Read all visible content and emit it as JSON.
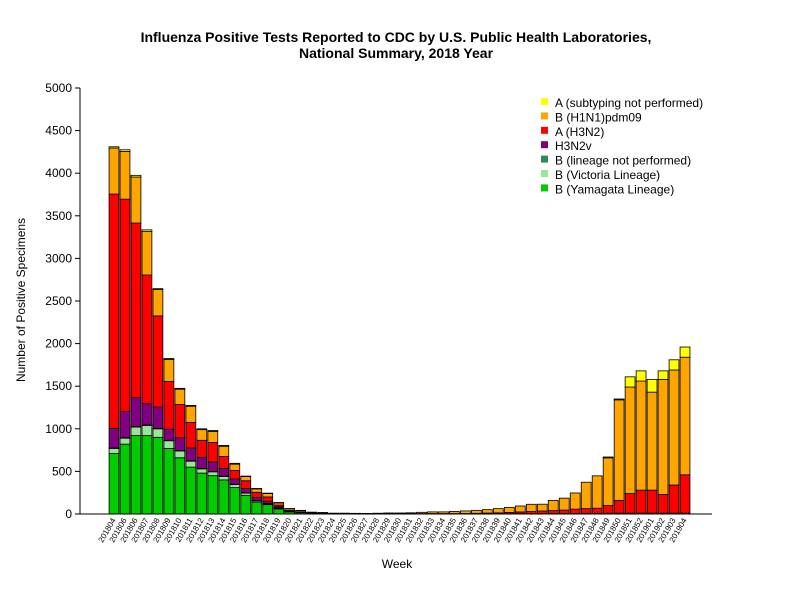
{
  "chart_data": {
    "type": "bar",
    "stacked": true,
    "title_line1": "Influenza Positive Tests Reported to CDC by U.S. Public Health Laboratories,",
    "title_line2": "National Summary, 2018 Year",
    "xlabel": "Week",
    "ylabel": "Number of Positive Specimens",
    "ylim": [
      0,
      5000
    ],
    "yticks": [
      0,
      500,
      1000,
      1500,
      2000,
      2500,
      3000,
      3500,
      4000,
      4500,
      5000
    ],
    "legend_position": "top-right",
    "categories": [
      "201804",
      "201806",
      "201806",
      "201807",
      "201808",
      "201809",
      "201810",
      "201811",
      "201812",
      "201813",
      "201814",
      "201815",
      "201816",
      "201817",
      "201818",
      "201819",
      "201820",
      "201821",
      "201822",
      "201823",
      "201824",
      "201825",
      "201826",
      "201827",
      "201828",
      "201829",
      "201830",
      "201831",
      "201832",
      "201833",
      "201834",
      "201835",
      "201836",
      "201837",
      "201838",
      "201839",
      "201840",
      "201841",
      "201842",
      "201843",
      "201844",
      "201845",
      "201846",
      "201847",
      "201848",
      "201849",
      "201850",
      "201851",
      "201852",
      "201901",
      "201902",
      "201903",
      "201904"
    ],
    "series": [
      {
        "name": "B (Yamagata Lineage)",
        "color": "#00cc00",
        "values": [
          710,
          820,
          920,
          920,
          900,
          770,
          660,
          550,
          480,
          450,
          400,
          310,
          220,
          140,
          110,
          60,
          25,
          15,
          8,
          5,
          4,
          3,
          3,
          2,
          2,
          2,
          2,
          2,
          2,
          2,
          2,
          2,
          2,
          3,
          3,
          3,
          3,
          4,
          4,
          5,
          5,
          6,
          7,
          8,
          8,
          9,
          10,
          10,
          10,
          10,
          10,
          10,
          10
        ]
      },
      {
        "name": "B (Victoria Lineage)",
        "color": "#99e699",
        "values": [
          60,
          70,
          100,
          120,
          100,
          90,
          80,
          70,
          50,
          45,
          40,
          35,
          25,
          15,
          10,
          5,
          3,
          2,
          1,
          1,
          0,
          0,
          0,
          0,
          0,
          0,
          0,
          0,
          0,
          0,
          0,
          0,
          0,
          0,
          0,
          0,
          0,
          0,
          0,
          0,
          0,
          0,
          0,
          0,
          0,
          0,
          0,
          0,
          0,
          0,
          0,
          0,
          0
        ]
      },
      {
        "name": "B (lineage not performed)",
        "color": "#2e8b57",
        "values": [
          5,
          5,
          5,
          5,
          5,
          5,
          5,
          5,
          5,
          5,
          5,
          5,
          5,
          5,
          5,
          5,
          3,
          2,
          1,
          1,
          0,
          0,
          0,
          0,
          0,
          0,
          0,
          0,
          0,
          0,
          0,
          0,
          0,
          0,
          0,
          0,
          0,
          0,
          0,
          0,
          0,
          0,
          0,
          0,
          0,
          0,
          0,
          0,
          0,
          0,
          0,
          0,
          0
        ]
      },
      {
        "name": "H3N2v",
        "color": "#800080",
        "values": [
          230,
          310,
          340,
          250,
          250,
          130,
          150,
          150,
          130,
          110,
          90,
          60,
          50,
          35,
          25,
          15,
          5,
          3,
          2,
          1,
          0,
          0,
          0,
          0,
          0,
          0,
          0,
          0,
          0,
          0,
          0,
          0,
          0,
          0,
          0,
          0,
          0,
          0,
          0,
          0,
          0,
          0,
          0,
          0,
          0,
          0,
          0,
          0,
          0,
          0,
          0,
          0,
          0
        ]
      },
      {
        "name": "A (H3N2)",
        "color": "#ff0000",
        "values": [
          2750,
          2490,
          2050,
          1510,
          1070,
          560,
          390,
          300,
          200,
          230,
          140,
          100,
          90,
          60,
          50,
          20,
          5,
          4,
          3,
          3,
          2,
          2,
          2,
          2,
          2,
          2,
          2,
          2,
          3,
          3,
          3,
          3,
          4,
          5,
          8,
          10,
          15,
          20,
          25,
          30,
          35,
          40,
          50,
          55,
          60,
          90,
          150,
          230,
          270,
          270,
          220,
          330,
          450
        ]
      },
      {
        "name": "B (H1N1)pdm09",
        "color": "#ffa500",
        "values": [
          540,
          560,
          540,
          510,
          310,
          260,
          180,
          190,
          125,
          130,
          120,
          75,
          50,
          40,
          40,
          25,
          20,
          15,
          5,
          5,
          4,
          5,
          3,
          3,
          5,
          8,
          8,
          10,
          15,
          20,
          20,
          25,
          30,
          35,
          40,
          50,
          60,
          70,
          85,
          80,
          120,
          140,
          190,
          310,
          380,
          560,
          1180,
          1250,
          1280,
          1150,
          1350,
          1350,
          1380
        ]
      },
      {
        "name": "A (subtyping not performed)",
        "color": "#ffff00",
        "values": [
          15,
          20,
          20,
          20,
          10,
          10,
          10,
          10,
          10,
          10,
          10,
          10,
          5,
          5,
          5,
          5,
          3,
          2,
          1,
          1,
          0,
          0,
          0,
          0,
          0,
          0,
          0,
          0,
          0,
          0,
          0,
          0,
          0,
          0,
          0,
          0,
          0,
          0,
          0,
          0,
          0,
          0,
          0,
          0,
          0,
          10,
          10,
          120,
          120,
          150,
          100,
          120,
          120
        ]
      }
    ],
    "legend_order": [
      "A (subtyping not performed)",
      "B (H1N1)pdm09",
      "A (H3N2)",
      "H3N2v",
      "B (lineage not performed)",
      "B (Victoria Lineage)",
      "B (Yamagata Lineage)"
    ]
  }
}
